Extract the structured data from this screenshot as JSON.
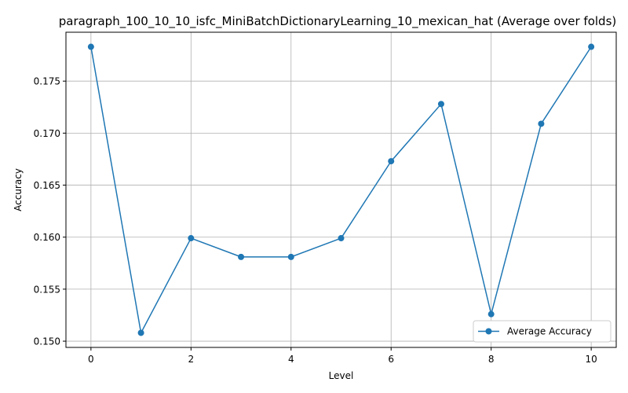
{
  "chart_data": {
    "type": "line",
    "title": "paragraph_100_10_10_isfc_MiniBatchDictionaryLearning_10_mexican_hat (Average over folds)",
    "xlabel": "Level",
    "ylabel": "Accuracy",
    "x": [
      0,
      1,
      2,
      3,
      4,
      5,
      6,
      7,
      8,
      9,
      10
    ],
    "series": [
      {
        "name": "Average Accuracy",
        "values": [
          0.1783,
          0.1508,
          0.1599,
          0.1581,
          0.1581,
          0.1599,
          0.1673,
          0.1728,
          0.1526,
          0.1709,
          0.1783
        ],
        "color": "#1f77b4",
        "marker": "circle"
      }
    ],
    "xlim": [
      -0.5,
      10.5
    ],
    "ylim": [
      0.1494,
      0.1797
    ],
    "xticks": [
      0,
      2,
      4,
      6,
      8,
      10
    ],
    "yticks": [
      0.15,
      0.155,
      0.16,
      0.165,
      0.17,
      0.175
    ],
    "ytick_labels": [
      "0.150",
      "0.155",
      "0.160",
      "0.165",
      "0.170",
      "0.175"
    ],
    "grid": true,
    "legend_position": "lower right"
  }
}
